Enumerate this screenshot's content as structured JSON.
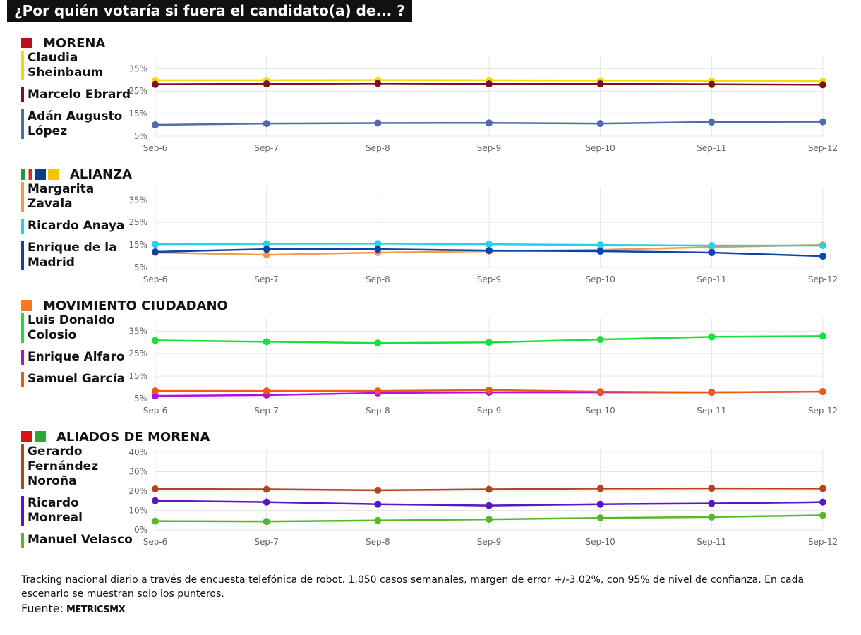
{
  "title": "¿Por quién votaría si fuera el candidato(a) de... ?",
  "chart_data": [
    {
      "type": "line",
      "title": "MORENA",
      "x": [
        "Sep-6",
        "Sep-7",
        "Sep-8",
        "Sep-9",
        "Sep-10",
        "Sep-11",
        "Sep-12"
      ],
      "ylim": [
        5,
        39.5
      ],
      "yticks": [
        {
          "value": 5,
          "label": "5%"
        },
        {
          "value": 15,
          "label": "15%"
        },
        {
          "value": 25,
          "label": "25%"
        },
        {
          "value": 35,
          "label": "35%"
        }
      ],
      "grid": true,
      "series": [
        {
          "name": "Claudia Sheinbaum",
          "color": "#f5d90a",
          "values": [
            29.8,
            29.8,
            29.9,
            29.8,
            29.7,
            29.6,
            29.5
          ]
        },
        {
          "name": "Marcelo Ebrard",
          "color": "#7b1020",
          "values": [
            28.0,
            28.2,
            28.4,
            28.2,
            28.2,
            28.0,
            27.8
          ]
        },
        {
          "name": "Adán Augusto López",
          "color": "#4f6bb0",
          "values": [
            10.0,
            10.6,
            10.8,
            10.9,
            10.6,
            11.3,
            11.4
          ]
        }
      ]
    },
    {
      "type": "line",
      "title": "ALIANZA",
      "x": [
        "Sep-6",
        "Sep-7",
        "Sep-8",
        "Sep-9",
        "Sep-10",
        "Sep-11",
        "Sep-12"
      ],
      "ylim": [
        5,
        39.5
      ],
      "yticks": [
        {
          "value": 5,
          "label": "5%"
        },
        {
          "value": 15,
          "label": "15%"
        },
        {
          "value": 25,
          "label": "25%"
        },
        {
          "value": 35,
          "label": "35%"
        }
      ],
      "grid": true,
      "series": [
        {
          "name": "Margarita Zavala",
          "color": "#f49a4a",
          "values": [
            11.6,
            10.6,
            11.6,
            12.2,
            12.8,
            14.0,
            15.0
          ]
        },
        {
          "name": "Ricardo Anaya",
          "color": "#1cd6e8",
          "values": [
            15.3,
            15.5,
            15.6,
            15.3,
            15.0,
            14.7,
            14.7
          ]
        },
        {
          "name": "Enrique de la Madrid",
          "color": "#0e44a8",
          "values": [
            11.9,
            13.1,
            13.1,
            12.5,
            12.2,
            11.6,
            10.0
          ]
        }
      ]
    },
    {
      "type": "line",
      "title": "MOVIMIENTO CIUDADANO",
      "x": [
        "Sep-6",
        "Sep-7",
        "Sep-8",
        "Sep-9",
        "Sep-10",
        "Sep-11",
        "Sep-12"
      ],
      "ylim": [
        5,
        39.5
      ],
      "yticks": [
        {
          "value": 5,
          "label": "5%"
        },
        {
          "value": 15,
          "label": "15%"
        },
        {
          "value": 25,
          "label": "25%"
        },
        {
          "value": 35,
          "label": "35%"
        }
      ],
      "grid": true,
      "series": [
        {
          "name": "Luis Donaldo Colosio",
          "color": "#19e03a",
          "values": [
            30.9,
            30.3,
            29.7,
            30.0,
            31.3,
            32.5,
            32.8
          ]
        },
        {
          "name": "Enrique Alfaro",
          "color": "#b20ee0",
          "values": [
            6.2,
            6.6,
            7.5,
            7.8,
            7.8,
            7.8,
            8.1
          ]
        },
        {
          "name": "Samuel García",
          "color": "#ee5a14",
          "values": [
            8.4,
            8.4,
            8.4,
            8.8,
            8.1,
            7.8,
            8.1
          ]
        }
      ]
    },
    {
      "type": "line",
      "title": "ALIADOS DE MORENA",
      "x": [
        "Sep-6",
        "Sep-7",
        "Sep-8",
        "Sep-9",
        "Sep-10",
        "Sep-11",
        "Sep-12"
      ],
      "ylim": [
        0,
        40
      ],
      "yticks": [
        {
          "value": 0,
          "label": "0%"
        },
        {
          "value": 10,
          "label": "10%"
        },
        {
          "value": 20,
          "label": "20%"
        },
        {
          "value": 30,
          "label": "30%"
        },
        {
          "value": 40,
          "label": "40%"
        }
      ],
      "grid": true,
      "series": [
        {
          "name": "Gerardo Fernández Noroña",
          "color": "#b3441e",
          "values": [
            21.1,
            20.9,
            20.4,
            20.9,
            21.3,
            21.4,
            21.3
          ]
        },
        {
          "name": "Ricardo Monreal",
          "color": "#5a16c4",
          "values": [
            15.0,
            14.3,
            13.2,
            12.5,
            13.2,
            13.6,
            14.3
          ]
        },
        {
          "name": "Manuel Velasco",
          "color": "#58b82a",
          "values": [
            4.5,
            4.3,
            4.8,
            5.4,
            6.1,
            6.6,
            7.5
          ]
        }
      ]
    }
  ],
  "footnote": "Tracking nacional diario a través de encuesta telefónica de robot. 1,050 casos semanales, margen de error +/-3.02%, con 95% de nivel de confianza. En cada escenario se muestran solo los punteros.",
  "source_label": "Fuente:",
  "source": "METRICSMX"
}
